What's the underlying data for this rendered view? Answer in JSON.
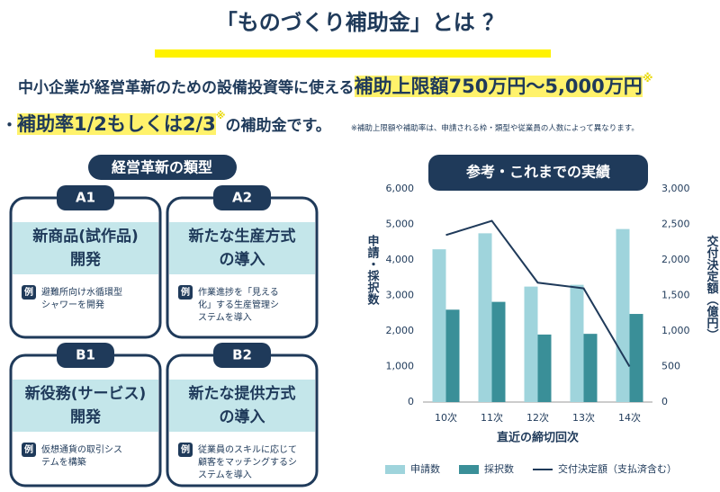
{
  "header": {
    "title": "「ものづくり補助金」とは ？"
  },
  "intro": {
    "line1": "中小企業が経営革新のための設備投資等に使える",
    "highlight1": "補助上限額750万円〜5,000万円",
    "mark1": "※",
    "line2_prefix": "・",
    "highlight2": "補助率1/2もしくは2/3",
    "mark2": "※",
    "line2_suffix": "の補助金です。",
    "note": "※補助上限額や補助率は、申請される枠・類型や従業員の人数によって異なります。"
  },
  "types": {
    "heading": "経営革新の類型",
    "cards": [
      {
        "badge": "A1",
        "title": [
          "新商品(試作品)",
          "開発"
        ],
        "example_label": "例",
        "example": [
          "避難所向け水循環型",
          "シャワーを開発"
        ]
      },
      {
        "badge": "A2",
        "title": [
          "新たな生産方式",
          "の導入"
        ],
        "example_label": "例",
        "example": [
          "作業進捗を「見える",
          "化」する生産管理シ",
          "ステムを導入"
        ]
      },
      {
        "badge": "B1",
        "title": [
          "新役務(サービス)",
          "開発"
        ],
        "example_label": "例",
        "example": [
          "仮想通貨の取引シス",
          "テムを構築"
        ]
      },
      {
        "badge": "B2",
        "title": [
          "新たな提供方式",
          "の導入"
        ],
        "example_label": "例",
        "example": [
          "従業員のスキルに応じて",
          "顧客をマッチングするシ",
          "ステムを導入"
        ]
      }
    ]
  },
  "chart_data": {
    "type": "bar",
    "title": "参考・これまでの実績",
    "categories": [
      "10次",
      "11次",
      "12次",
      "13次",
      "14次"
    ],
    "series": [
      {
        "name": "申請数",
        "color": "#9fd4dc",
        "values": [
          4300,
          4750,
          3250,
          3300,
          4870
        ]
      },
      {
        "name": "採択数",
        "color": "#3a8f98",
        "values": [
          2600,
          2820,
          1900,
          1920,
          2480
        ]
      },
      {
        "name": "交付決定額（支払済含む）",
        "color": "#1f3a5a",
        "type": "line",
        "axis": "y2",
        "values": [
          2350,
          2550,
          1680,
          1600,
          500
        ]
      }
    ],
    "ylim": [
      0,
      6000
    ],
    "yticks": [
      0,
      {
        "value": 1000,
        "label": "1,000"
      },
      {
        "value": 2000,
        "label": "2,000"
      },
      {
        "value": 3000,
        "label": "3,000"
      },
      {
        "value": 4000,
        "label": "4,000"
      },
      {
        "value": 5000,
        "label": "5,000"
      },
      {
        "value": 6000,
        "label": "6,000"
      }
    ],
    "y2lim": [
      0,
      3000
    ],
    "y2ticks": [
      0,
      500,
      {
        "value": 1000,
        "label": "1,000"
      },
      {
        "value": 1500,
        "label": "1,500"
      },
      {
        "value": 2000,
        "label": "2,000"
      },
      {
        "value": 2500,
        "label": "2,500"
      },
      {
        "value": 3000,
        "label": "3,000"
      }
    ],
    "ylabel": "申請・採択数",
    "y2label": "交付決定額（億円）",
    "xlabel": "直近の締切回次",
    "grid": false
  }
}
